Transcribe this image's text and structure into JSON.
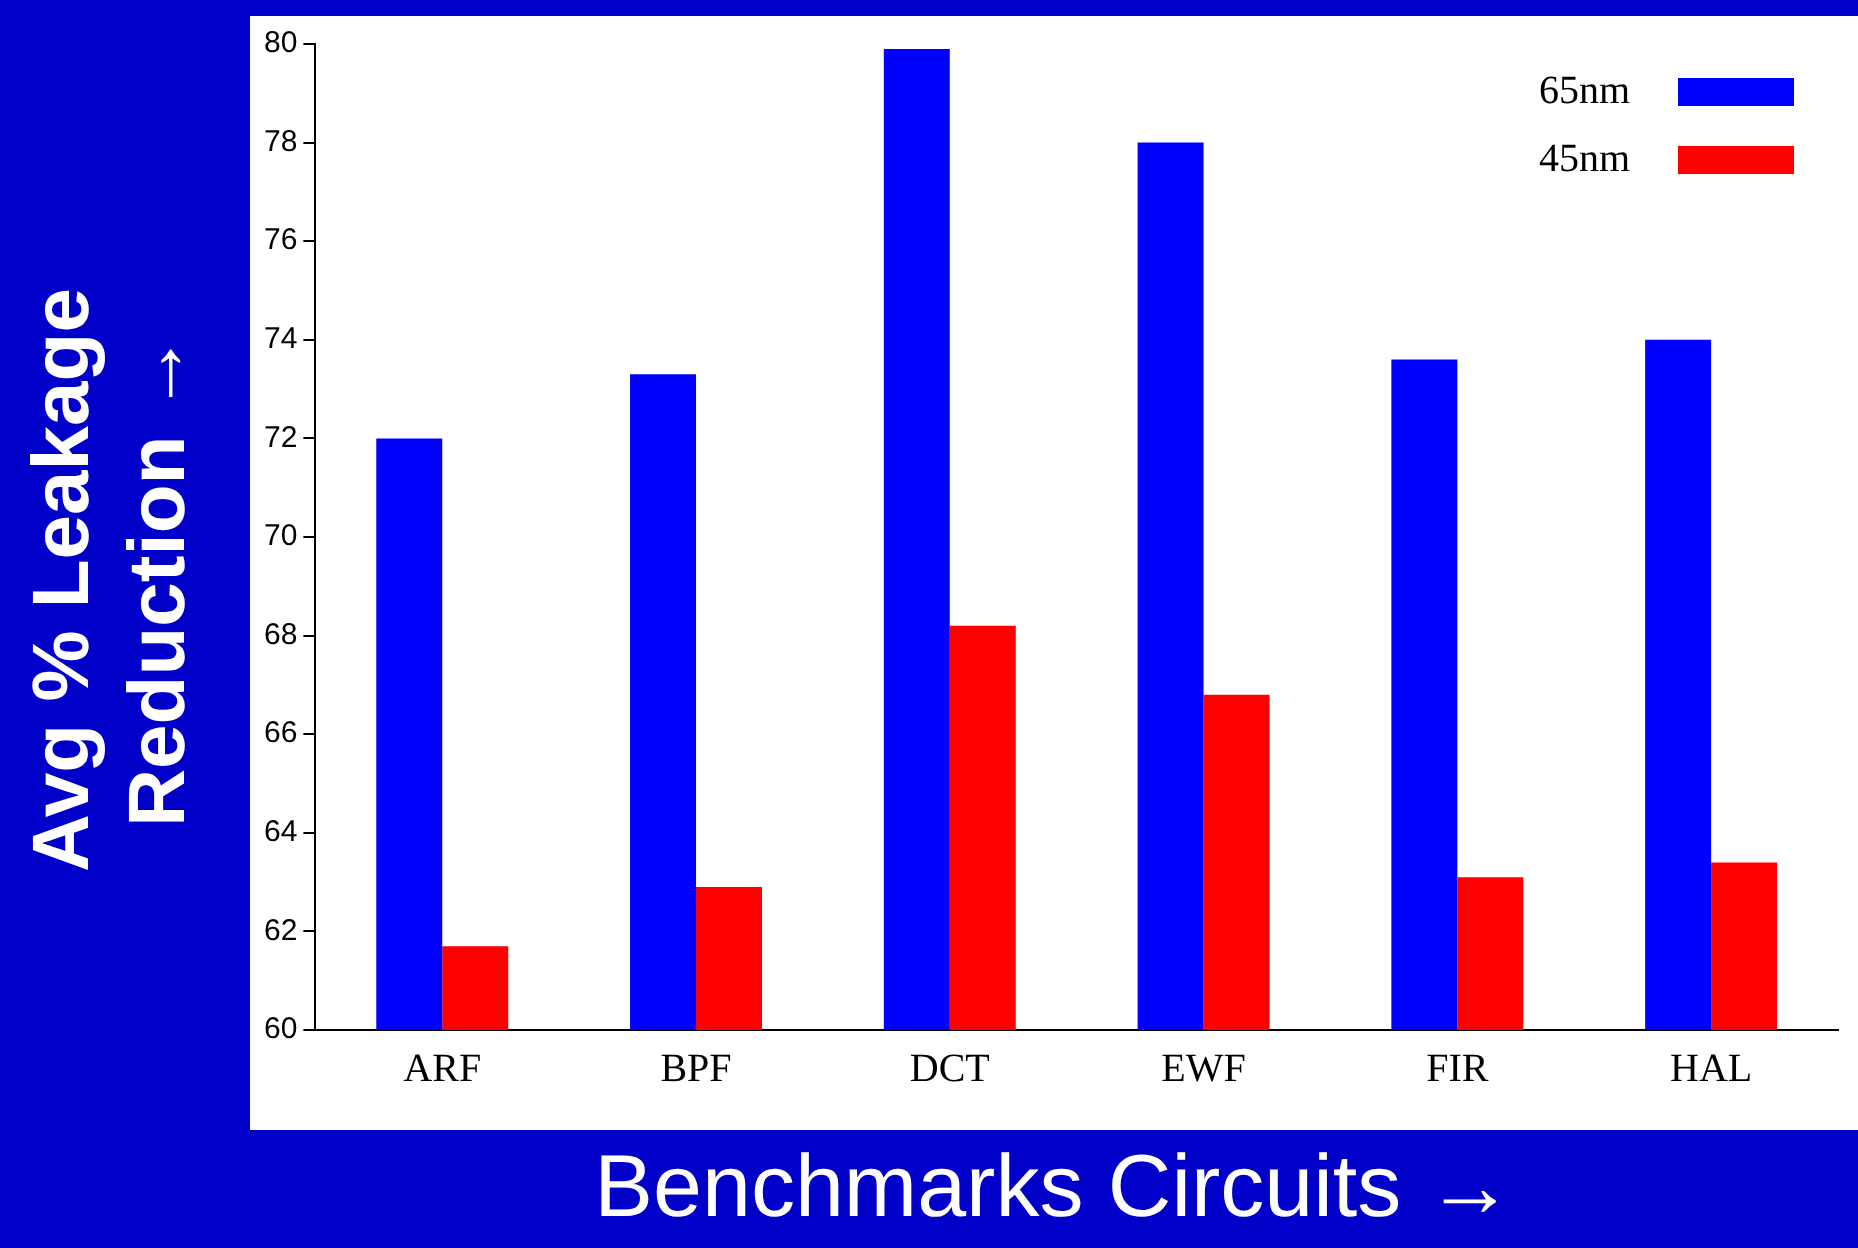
{
  "chart_data": {
    "type": "bar",
    "xlabel": "Benchmarks Circuits →",
    "ylabel": "Avg % Leakage Reduction →",
    "categories": [
      "ARF",
      "BPF",
      "DCT",
      "EWF",
      "FIR",
      "HAL"
    ],
    "series": [
      {
        "name": "65nm",
        "color": "#0000ff",
        "values": [
          72.0,
          73.3,
          79.9,
          78.0,
          73.6,
          74.0
        ]
      },
      {
        "name": "45nm",
        "color": "#ff0000",
        "values": [
          61.7,
          62.9,
          68.2,
          66.8,
          63.1,
          63.4
        ]
      }
    ],
    "ylim": [
      60,
      80
    ],
    "yticks": [
      60,
      62,
      64,
      66,
      68,
      70,
      72,
      74,
      76,
      78,
      80
    ],
    "grid": false,
    "legend": "top right"
  }
}
